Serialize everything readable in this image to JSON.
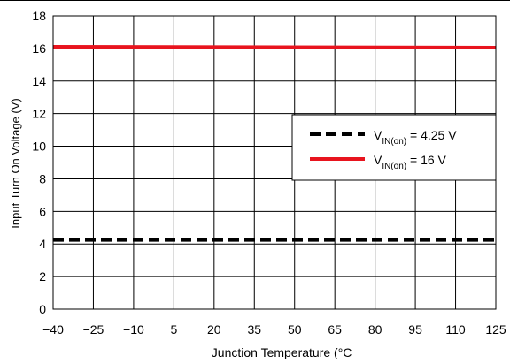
{
  "chart_data": {
    "type": "line",
    "title": "",
    "xlabel": "Junction Temperature (°C_",
    "ylabel": "Input Turn On Voltage (V)",
    "xlim": [
      -40,
      125
    ],
    "ylim": [
      0,
      18
    ],
    "xticks": [
      -40,
      -25,
      -10,
      5,
      20,
      35,
      50,
      65,
      80,
      95,
      110,
      125
    ],
    "xtick_labels": [
      "−40",
      "−25",
      "−10",
      "5",
      "20",
      "35",
      "50",
      "65",
      "80",
      "95",
      "110",
      "125"
    ],
    "yticks": [
      0,
      2,
      4,
      6,
      8,
      10,
      12,
      14,
      16,
      18
    ],
    "grid": true,
    "legend_position": "right",
    "series": [
      {
        "key": "vin_4_25",
        "legend_main": "V",
        "legend_sub": "IN(on)",
        "legend_value": " = 4.25 V",
        "color": "#000000",
        "style": "dashed",
        "x": [
          -40,
          125
        ],
        "y": [
          4.25,
          4.25
        ]
      },
      {
        "key": "vin_16",
        "legend_main": "V",
        "legend_sub": "IN(on)",
        "legend_value": " = 16 V",
        "color": "#e8141e",
        "style": "solid",
        "x": [
          -40,
          125
        ],
        "y": [
          16.1,
          16.05
        ]
      }
    ]
  }
}
